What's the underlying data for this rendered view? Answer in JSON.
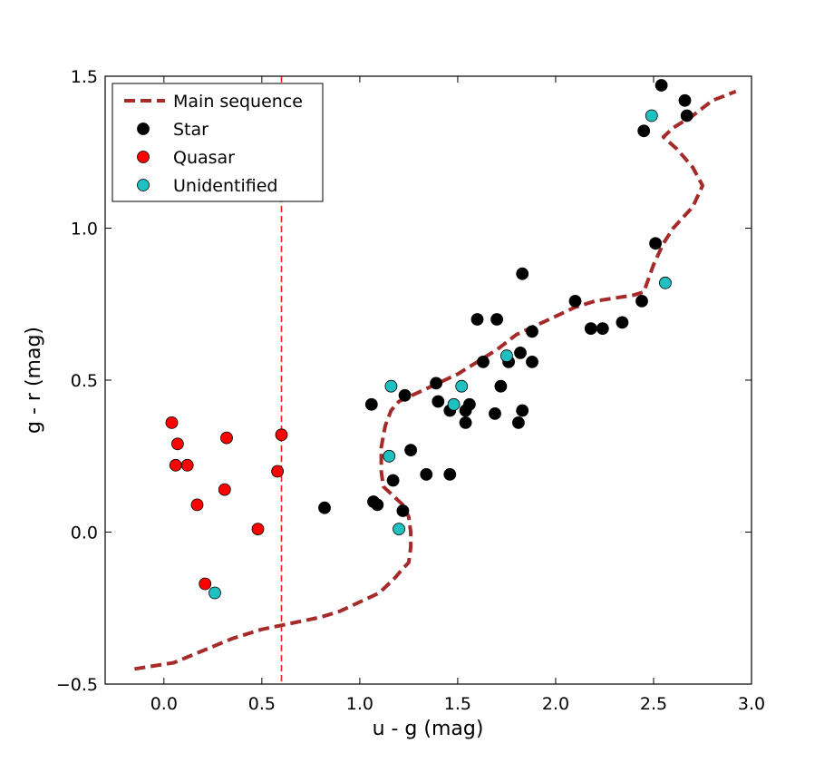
{
  "chart_data": {
    "type": "scatter",
    "title": "",
    "xlabel": "u - g (mag)",
    "ylabel": "g - r (mag)",
    "xlim": [
      -0.3,
      3.0
    ],
    "ylim": [
      -0.5,
      1.5
    ],
    "x_ticks": [
      0.0,
      0.5,
      1.0,
      1.5,
      2.0,
      2.5,
      3.0
    ],
    "x_tick_labels": [
      "0.0",
      "0.5",
      "1.0",
      "1.5",
      "2.0",
      "2.5",
      "3.0"
    ],
    "y_ticks": [
      -0.5,
      0.0,
      0.5,
      1.0,
      1.5
    ],
    "y_tick_labels": [
      "−0.5",
      "0.0",
      "0.5",
      "1.0",
      "1.5"
    ],
    "grid": false,
    "legend_position": "top-left",
    "vertical_line": {
      "x": 0.6,
      "color": "#ff2020",
      "style": "dashed"
    },
    "series": [
      {
        "name": "Main sequence",
        "kind": "line",
        "color": "#a52a2a",
        "style": "dashed",
        "points": [
          [
            -0.15,
            -0.45
          ],
          [
            0.05,
            -0.43
          ],
          [
            0.2,
            -0.39
          ],
          [
            0.35,
            -0.35
          ],
          [
            0.5,
            -0.32
          ],
          [
            0.65,
            -0.3
          ],
          [
            0.8,
            -0.28
          ],
          [
            0.9,
            -0.26
          ],
          [
            1.0,
            -0.23
          ],
          [
            1.1,
            -0.2
          ],
          [
            1.18,
            -0.15
          ],
          [
            1.22,
            -0.12
          ],
          [
            1.25,
            -0.1
          ],
          [
            1.26,
            -0.05
          ],
          [
            1.26,
            0.0
          ],
          [
            1.25,
            0.05
          ],
          [
            1.22,
            0.09
          ],
          [
            1.17,
            0.12
          ],
          [
            1.12,
            0.15
          ],
          [
            1.11,
            0.2
          ],
          [
            1.11,
            0.28
          ],
          [
            1.13,
            0.35
          ],
          [
            1.16,
            0.4
          ],
          [
            1.2,
            0.43
          ],
          [
            1.3,
            0.46
          ],
          [
            1.4,
            0.49
          ],
          [
            1.5,
            0.52
          ],
          [
            1.6,
            0.56
          ],
          [
            1.7,
            0.6
          ],
          [
            1.8,
            0.65
          ],
          [
            1.9,
            0.68
          ],
          [
            2.0,
            0.71
          ],
          [
            2.1,
            0.74
          ],
          [
            2.2,
            0.76
          ],
          [
            2.3,
            0.77
          ],
          [
            2.4,
            0.78
          ],
          [
            2.45,
            0.79
          ],
          [
            2.5,
            0.88
          ],
          [
            2.55,
            0.95
          ],
          [
            2.6,
            1.0
          ],
          [
            2.7,
            1.07
          ],
          [
            2.75,
            1.14
          ],
          [
            2.7,
            1.2
          ],
          [
            2.62,
            1.26
          ],
          [
            2.55,
            1.3
          ],
          [
            2.6,
            1.33
          ],
          [
            2.7,
            1.37
          ],
          [
            2.8,
            1.42
          ],
          [
            2.92,
            1.45
          ]
        ]
      },
      {
        "name": "Star",
        "kind": "scatter",
        "color": "#000000",
        "points": [
          [
            2.54,
            1.47
          ],
          [
            2.66,
            1.42
          ],
          [
            2.67,
            1.37
          ],
          [
            2.45,
            1.32
          ],
          [
            2.51,
            0.95
          ],
          [
            1.83,
            0.85
          ],
          [
            2.1,
            0.76
          ],
          [
            2.44,
            0.76
          ],
          [
            2.34,
            0.69
          ],
          [
            2.18,
            0.67
          ],
          [
            2.24,
            0.67
          ],
          [
            1.6,
            0.7
          ],
          [
            1.7,
            0.7
          ],
          [
            1.88,
            0.66
          ],
          [
            1.82,
            0.59
          ],
          [
            1.76,
            0.56
          ],
          [
            1.88,
            0.56
          ],
          [
            1.63,
            0.56
          ],
          [
            1.39,
            0.49
          ],
          [
            1.72,
            0.48
          ],
          [
            1.23,
            0.45
          ],
          [
            1.4,
            0.43
          ],
          [
            1.06,
            0.42
          ],
          [
            1.46,
            0.4
          ],
          [
            1.54,
            0.4
          ],
          [
            1.56,
            0.42
          ],
          [
            1.69,
            0.39
          ],
          [
            1.83,
            0.4
          ],
          [
            1.54,
            0.36
          ],
          [
            1.81,
            0.36
          ],
          [
            1.26,
            0.27
          ],
          [
            1.34,
            0.19
          ],
          [
            1.46,
            0.19
          ],
          [
            1.17,
            0.17
          ],
          [
            1.07,
            0.1
          ],
          [
            1.09,
            0.09
          ],
          [
            0.82,
            0.08
          ],
          [
            1.22,
            0.07
          ]
        ]
      },
      {
        "name": "Quasar",
        "kind": "scatter",
        "color": "#ff0000",
        "points": [
          [
            0.04,
            0.36
          ],
          [
            0.07,
            0.29
          ],
          [
            0.6,
            0.32
          ],
          [
            0.32,
            0.31
          ],
          [
            0.06,
            0.22
          ],
          [
            0.12,
            0.22
          ],
          [
            0.58,
            0.2
          ],
          [
            0.31,
            0.14
          ],
          [
            0.17,
            0.09
          ],
          [
            0.48,
            0.01
          ],
          [
            0.21,
            -0.17
          ]
        ]
      },
      {
        "name": "Unidentified",
        "kind": "scatter",
        "color": "#20c0c0",
        "points": [
          [
            2.49,
            1.37
          ],
          [
            2.56,
            0.82
          ],
          [
            1.75,
            0.58
          ],
          [
            1.16,
            0.48
          ],
          [
            1.52,
            0.48
          ],
          [
            1.48,
            0.42
          ],
          [
            1.15,
            0.25
          ],
          [
            1.2,
            0.01
          ],
          [
            0.26,
            -0.2
          ]
        ]
      }
    ]
  }
}
